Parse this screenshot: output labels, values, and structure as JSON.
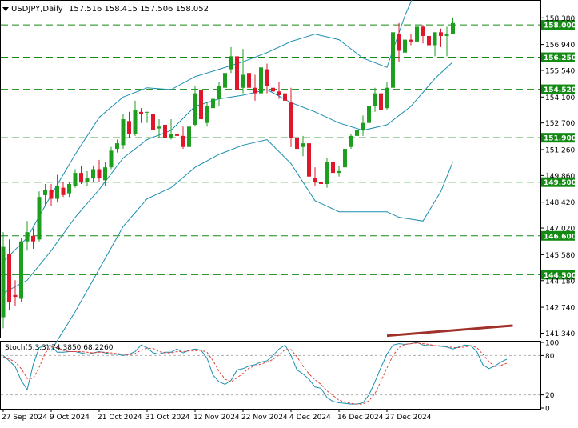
{
  "chart_data": [
    {
      "type": "candlestick",
      "symbol": "USDJPY",
      "timeframe": "Daily",
      "header": {
        "symbol_tf": "USDJPY,Daily",
        "ohlc": "157.516 158.415 157.506 158.052"
      },
      "price_ticks": [
        "158.380",
        "156.940",
        "155.540",
        "154.100",
        "152.700",
        "151.260",
        "149.860",
        "148.420",
        "147.020",
        "145.580",
        "144.180",
        "142.740",
        "141.340"
      ],
      "price_range": [
        141.1,
        159.3
      ],
      "levels": [
        {
          "price": 158.0,
          "label": "158.000"
        },
        {
          "price": 156.25,
          "label": "156.250"
        },
        {
          "price": 154.52,
          "label": "154.520"
        },
        {
          "price": 151.9,
          "label": "151.900"
        },
        {
          "price": 149.5,
          "label": "149.500"
        },
        {
          "price": 146.6,
          "label": "146.600"
        },
        {
          "price": 144.5,
          "label": "144.500"
        }
      ],
      "x_labels": [
        "27 Sep 2024",
        "9 Oct 2024",
        "21 Oct 2024",
        "31 Oct 2024",
        "12 Nov 2024",
        "22 Nov 2024",
        "4 Dec 2024",
        "16 Dec 2024",
        "27 Dec 2024"
      ],
      "candles": [
        [
          142.2,
          146.8,
          141.6,
          146.0
        ],
        [
          145.6,
          146.4,
          142.6,
          143.0
        ],
        [
          143.4,
          144.2,
          142.8,
          143.3
        ],
        [
          143.2,
          146.5,
          143.0,
          146.3
        ],
        [
          146.3,
          147.4,
          145.8,
          146.8
        ],
        [
          146.6,
          147.0,
          145.9,
          146.3
        ],
        [
          146.4,
          149.0,
          146.3,
          148.7
        ],
        [
          148.8,
          149.4,
          148.2,
          149.1
        ],
        [
          149.1,
          149.4,
          148.2,
          148.6
        ],
        [
          148.6,
          149.9,
          148.4,
          149.3
        ],
        [
          149.2,
          149.5,
          148.7,
          148.8
        ],
        [
          148.9,
          149.5,
          148.7,
          149.4
        ],
        [
          149.3,
          150.2,
          149.2,
          150.0
        ],
        [
          150.0,
          150.4,
          149.4,
          149.5
        ],
        [
          149.5,
          150.1,
          149.3,
          149.7
        ],
        [
          149.7,
          150.4,
          149.5,
          150.2
        ],
        [
          150.2,
          150.7,
          149.5,
          149.7
        ],
        [
          149.6,
          150.6,
          149.3,
          150.3
        ],
        [
          150.3,
          151.4,
          150.2,
          151.2
        ],
        [
          151.3,
          151.8,
          151.1,
          151.6
        ],
        [
          151.5,
          153.2,
          151.3,
          152.9
        ],
        [
          152.8,
          153.3,
          151.9,
          152.1
        ],
        [
          152.1,
          153.9,
          152.0,
          153.4
        ],
        [
          153.3,
          153.5,
          152.7,
          153.2
        ],
        [
          153.3,
          153.3,
          152.7,
          153.3
        ],
        [
          153.2,
          153.4,
          152.0,
          152.3
        ],
        [
          152.4,
          152.9,
          151.9,
          152.5
        ],
        [
          152.6,
          153.1,
          151.6,
          151.9
        ],
        [
          151.9,
          152.9,
          151.8,
          152.1
        ],
        [
          152.1,
          152.9,
          151.4,
          152.0
        ],
        [
          152.0,
          152.5,
          151.3,
          151.4
        ],
        [
          151.4,
          152.6,
          151.3,
          152.5
        ],
        [
          152.6,
          154.7,
          152.5,
          154.3
        ],
        [
          154.5,
          154.7,
          152.6,
          152.9
        ],
        [
          152.7,
          153.8,
          152.5,
          153.6
        ],
        [
          153.5,
          154.1,
          153.3,
          154.0
        ],
        [
          154.0,
          154.9,
          153.6,
          154.7
        ],
        [
          154.6,
          155.8,
          154.4,
          155.4
        ],
        [
          155.6,
          156.8,
          155.4,
          156.3
        ],
        [
          156.3,
          156.6,
          154.3,
          154.5
        ],
        [
          154.6,
          156.7,
          154.3,
          155.3
        ],
        [
          155.4,
          155.6,
          154.4,
          154.6
        ],
        [
          154.6,
          155.3,
          153.9,
          154.3
        ],
        [
          154.3,
          155.9,
          154.2,
          155.7
        ],
        [
          155.6,
          155.9,
          154.3,
          154.7
        ],
        [
          154.6,
          155.2,
          153.8,
          154.4
        ],
        [
          154.4,
          154.9,
          154.0,
          154.2
        ],
        [
          154.3,
          154.7,
          152.3,
          153.9
        ],
        [
          153.8,
          154.6,
          151.4,
          151.9
        ],
        [
          151.9,
          152.3,
          150.4,
          151.3
        ],
        [
          151.4,
          152.0,
          150.9,
          151.6
        ],
        [
          151.6,
          151.9,
          149.6,
          149.8
        ],
        [
          149.7,
          150.3,
          149.3,
          149.5
        ],
        [
          149.5,
          150.0,
          148.6,
          149.4
        ],
        [
          149.4,
          150.8,
          149.2,
          150.6
        ],
        [
          150.6,
          150.8,
          149.7,
          150.0
        ],
        [
          150.0,
          150.4,
          149.8,
          150.1
        ],
        [
          150.3,
          151.6,
          150.1,
          151.3
        ],
        [
          151.4,
          152.1,
          151.3,
          152.0
        ],
        [
          152.0,
          152.6,
          151.5,
          152.3
        ],
        [
          152.3,
          153.1,
          152.0,
          152.7
        ],
        [
          152.7,
          153.8,
          152.5,
          153.6
        ],
        [
          153.6,
          154.6,
          153.3,
          154.3
        ],
        [
          154.3,
          154.6,
          153.2,
          153.4
        ],
        [
          153.5,
          154.9,
          153.4,
          154.6
        ],
        [
          154.6,
          157.9,
          154.5,
          157.6
        ],
        [
          157.5,
          158.1,
          156.0,
          156.6
        ],
        [
          156.5,
          157.4,
          156.3,
          157.2
        ],
        [
          157.2,
          157.5,
          156.9,
          157.1
        ],
        [
          157.1,
          158.1,
          157.0,
          157.9
        ],
        [
          157.9,
          158.0,
          157.0,
          157.4
        ],
        [
          157.4,
          158.1,
          156.5,
          156.9
        ],
        [
          156.9,
          157.6,
          156.3,
          157.6
        ],
        [
          157.6,
          157.8,
          156.8,
          157.4
        ],
        [
          157.4,
          157.9,
          156.3,
          157.5
        ],
        [
          157.5,
          158.4,
          157.5,
          158.1
        ]
      ],
      "bands": {
        "upper": [
          [
            0,
            145.2
          ],
          [
            4,
            146.5
          ],
          [
            8,
            148.8
          ],
          [
            12,
            151.0
          ],
          [
            16,
            153.0
          ],
          [
            20,
            154.1
          ],
          [
            24,
            154.6
          ],
          [
            28,
            154.5
          ],
          [
            32,
            155.2
          ],
          [
            36,
            155.6
          ],
          [
            40,
            156.0
          ],
          [
            44,
            156.5
          ],
          [
            48,
            157.1
          ],
          [
            52,
            157.5
          ],
          [
            56,
            157.2
          ],
          [
            60,
            156.2
          ],
          [
            64,
            155.7
          ],
          [
            67,
            158.5
          ],
          [
            69,
            160.0
          ]
        ],
        "middle": [
          [
            0,
            143.5
          ],
          [
            4,
            144.2
          ],
          [
            8,
            145.8
          ],
          [
            12,
            147.6
          ],
          [
            16,
            149.1
          ],
          [
            20,
            150.8
          ],
          [
            24,
            151.8
          ],
          [
            28,
            152.3
          ],
          [
            32,
            153.6
          ],
          [
            36,
            154.0
          ],
          [
            40,
            154.2
          ],
          [
            44,
            154.5
          ],
          [
            48,
            153.8
          ],
          [
            52,
            153.3
          ],
          [
            56,
            152.7
          ],
          [
            60,
            152.3
          ],
          [
            64,
            152.6
          ],
          [
            68,
            153.6
          ],
          [
            72,
            155.1
          ],
          [
            75,
            156.0
          ]
        ],
        "lower": [
          [
            8,
            140.4
          ],
          [
            12,
            142.5
          ],
          [
            16,
            144.8
          ],
          [
            20,
            147.1
          ],
          [
            24,
            148.6
          ],
          [
            28,
            149.2
          ],
          [
            32,
            150.3
          ],
          [
            36,
            151.0
          ],
          [
            40,
            151.5
          ],
          [
            44,
            151.8
          ],
          [
            48,
            150.5
          ],
          [
            52,
            148.5
          ],
          [
            56,
            147.9
          ],
          [
            60,
            147.9
          ],
          [
            64,
            147.9
          ],
          [
            66,
            147.6
          ],
          [
            70,
            147.4
          ],
          [
            73,
            149.0
          ],
          [
            75,
            150.6
          ]
        ]
      },
      "trendline": {
        "start": [
          64,
          141.2
        ],
        "end": [
          85,
          141.75
        ],
        "color": "#a0312a"
      }
    },
    {
      "type": "line",
      "title": "Stoch(5,3,3)",
      "label": "Stoch(5,3,3) 74.3850 68.2260",
      "ylim": [
        0,
        100
      ],
      "levels": [
        20,
        80
      ],
      "ticks": [
        "100",
        "80",
        "20",
        "0"
      ],
      "series": [
        {
          "name": "main",
          "color": "#1a8fb0",
          "dash": false,
          "values": [
            80,
            72,
            63,
            42,
            28,
            66,
            92,
            95,
            95,
            85,
            85,
            86,
            86,
            84,
            82,
            84,
            86,
            84,
            82,
            82,
            80,
            82,
            86,
            96,
            92,
            84,
            82,
            85,
            85,
            90,
            84,
            88,
            90,
            88,
            76,
            50,
            40,
            36,
            42,
            58,
            60,
            64,
            66,
            70,
            72,
            80,
            90,
            96,
            80,
            58,
            52,
            44,
            32,
            30,
            16,
            10,
            8,
            7,
            6,
            6,
            8,
            20,
            40,
            62,
            82,
            96,
            98,
            97,
            98,
            100,
            96,
            95,
            95,
            94,
            93,
            90,
            93,
            96,
            95,
            86,
            66,
            60,
            64,
            70,
            74.4
          ]
        },
        {
          "name": "signal",
          "color": "#e0403a",
          "dash": true,
          "values": [
            78,
            75,
            70,
            60,
            45,
            45,
            62,
            84,
            93,
            92,
            88,
            86,
            86,
            86,
            85,
            84,
            85,
            85,
            84,
            83,
            82,
            81,
            83,
            88,
            91,
            91,
            86,
            84,
            84,
            86,
            86,
            87,
            87,
            88,
            85,
            72,
            56,
            44,
            40,
            46,
            53,
            61,
            64,
            67,
            70,
            74,
            81,
            89,
            89,
            78,
            64,
            52,
            43,
            36,
            26,
            19,
            12,
            9,
            7,
            6,
            6,
            11,
            22,
            41,
            61,
            80,
            92,
            97,
            98,
            99,
            98,
            97,
            95,
            95,
            94,
            92,
            92,
            93,
            95,
            92,
            82,
            71,
            63,
            65,
            68.2
          ]
        }
      ]
    }
  ],
  "colors": {
    "bull": "#1e9e1e",
    "bear": "#e0162b",
    "band": "#1a8fb0",
    "level": "#138a13",
    "grid": "#b0b0b0",
    "axis": "#000000"
  }
}
